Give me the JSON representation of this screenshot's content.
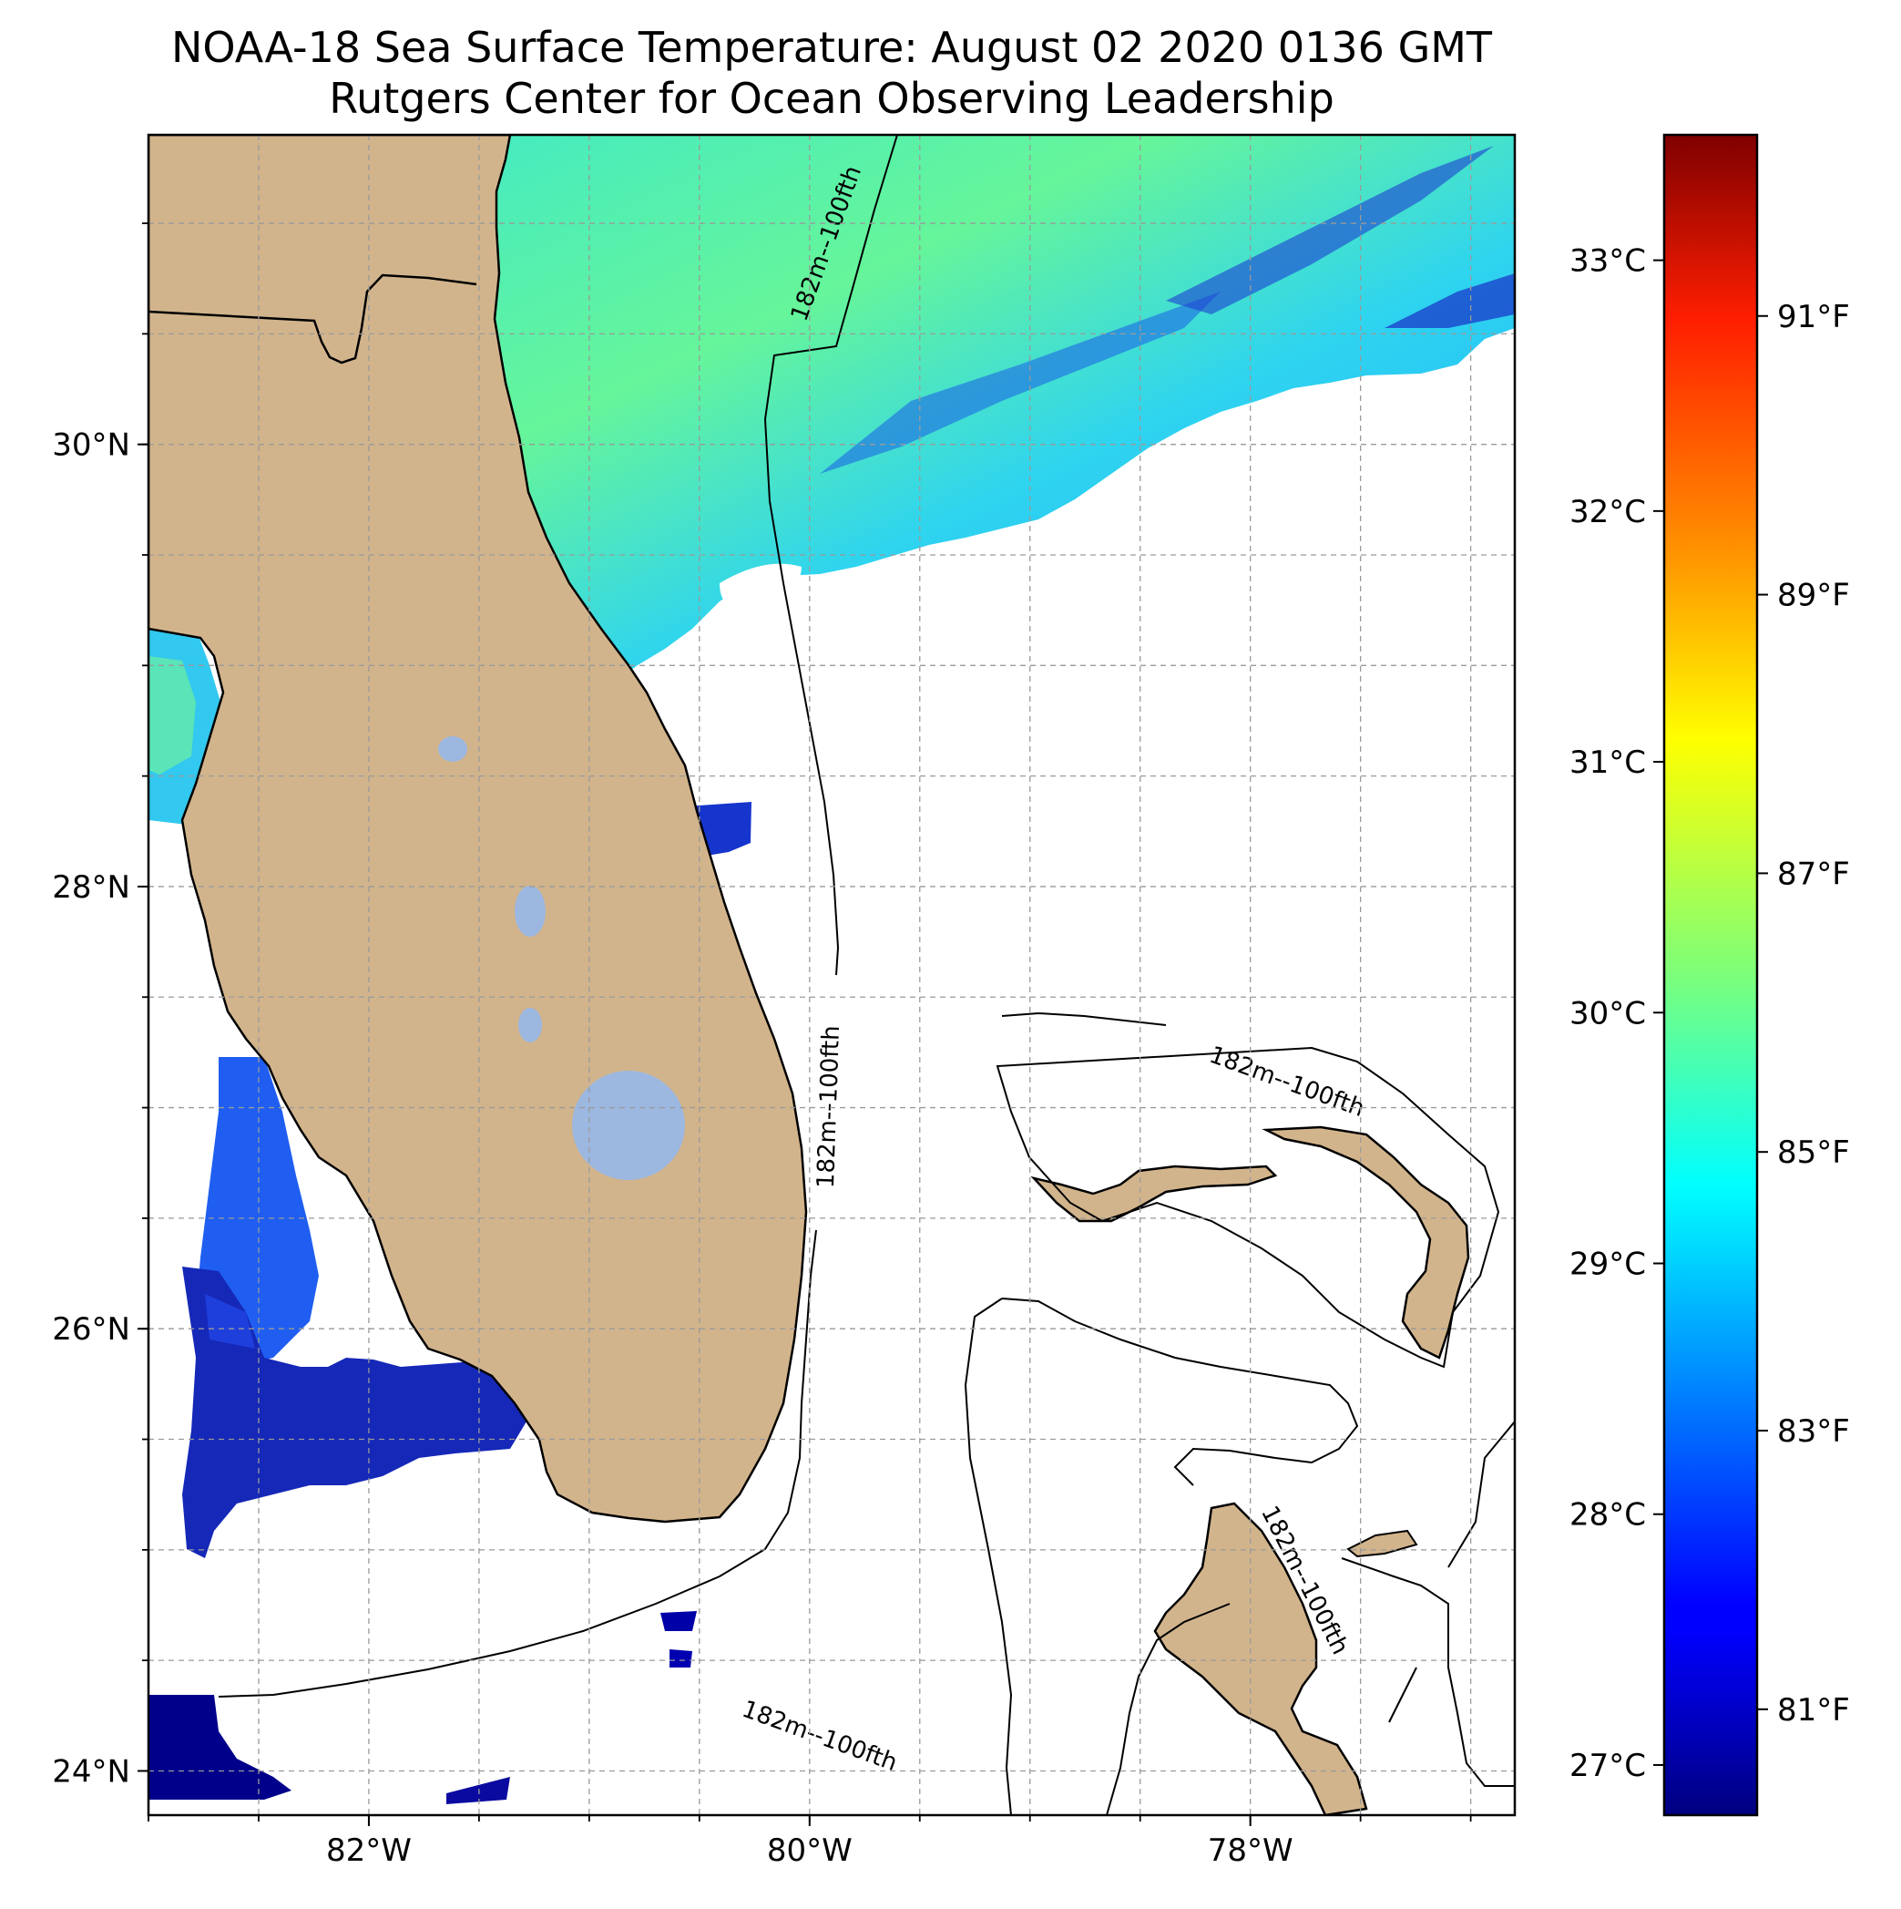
{
  "title": {
    "line1": "NOAA-18 Sea Surface Temperature: August 02 2020 0136 GMT",
    "line2": "Rutgers Center for Ocean Observing Leadership"
  },
  "map": {
    "lon_range": [
      -83.0,
      -76.8
    ],
    "lat_range": [
      23.8,
      31.4
    ],
    "lon_ticks": [
      {
        "value": -82,
        "label": "82°W"
      },
      {
        "value": -80,
        "label": "80°W"
      },
      {
        "value": -78,
        "label": "78°W"
      }
    ],
    "lat_ticks": [
      {
        "value": 24,
        "label": "24°N"
      },
      {
        "value": 26,
        "label": "26°N"
      },
      {
        "value": 28,
        "label": "28°N"
      },
      {
        "value": 30,
        "label": "30°N"
      }
    ],
    "gridlines": true,
    "land_color": "#d2b48c",
    "lake_color": "#9cb7e0",
    "contour_label": "182m--100fth",
    "contour_labels": [
      "182m--100fth",
      "182m--100fth",
      "182m--100fth",
      "182m--100fth",
      "182m--100fth"
    ]
  },
  "colorbar": {
    "colormap": "jet",
    "celsius_range": [
      26.8,
      33.5
    ],
    "celsius_ticks": [
      {
        "value": 27,
        "label": "27°C"
      },
      {
        "value": 28,
        "label": "28°C"
      },
      {
        "value": 29,
        "label": "29°C"
      },
      {
        "value": 30,
        "label": "30°C"
      },
      {
        "value": 31,
        "label": "31°C"
      },
      {
        "value": 32,
        "label": "32°C"
      },
      {
        "value": 33,
        "label": "33°C"
      }
    ],
    "fahrenheit_ticks": [
      {
        "value": 81,
        "label": "81°F"
      },
      {
        "value": 83,
        "label": "83°F"
      },
      {
        "value": 85,
        "label": "85°F"
      },
      {
        "value": 87,
        "label": "87°F"
      },
      {
        "value": 89,
        "label": "89°F"
      },
      {
        "value": 91,
        "label": "91°F"
      }
    ]
  }
}
